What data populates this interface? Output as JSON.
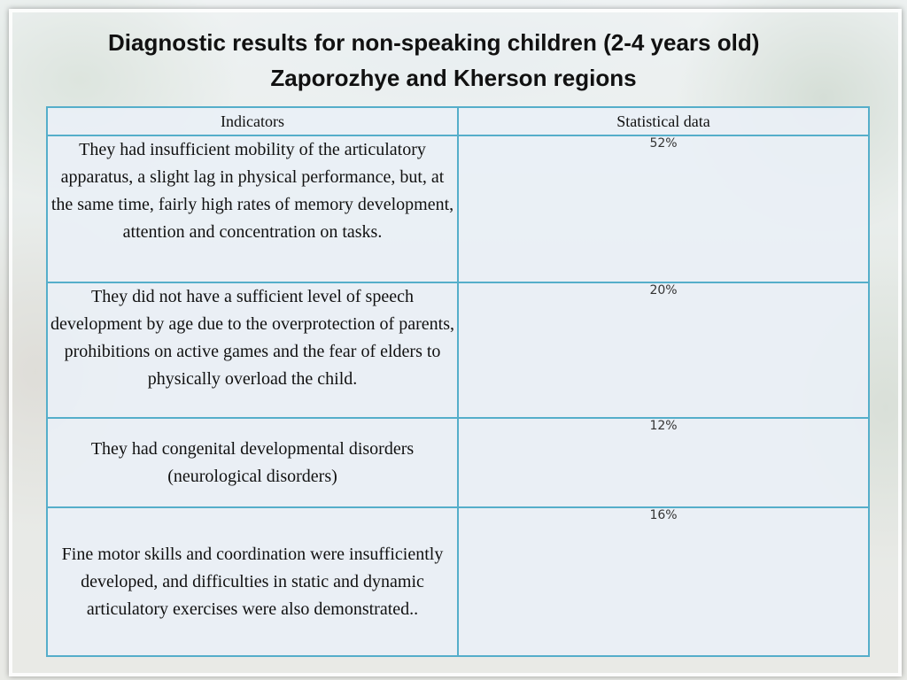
{
  "title": {
    "line1": "Diagnostic results for non-speaking children (2-4 years old)",
    "line2": "Zaporozhye and Kherson regions"
  },
  "table": {
    "headers": [
      "Indicators",
      "Statistical data"
    ],
    "rows": [
      {
        "indicator": "They had insufficient mobility of the articulatory apparatus, a slight lag in physical performance, but, at the same time, fairly high rates of memory development, attention and concentration on tasks.",
        "value": "52%"
      },
      {
        "indicator": "They did not have a sufficient level of speech development by age due to the overprotection of parents, prohibitions on active games and the fear of elders to physically overload the child.",
        "value": "20%"
      },
      {
        "indicator": "They had congenital developmental disorders (neurological disorders)",
        "value": "12%"
      },
      {
        "indicator": "Fine motor skills and coordination were insufficiently developed, and difficulties in static and dynamic articulatory exercises were also demonstrated..",
        "value": "16%"
      }
    ]
  },
  "colors": {
    "table_border": "#55aeca",
    "cell_background": "#eaeff6",
    "text": "#111111"
  }
}
